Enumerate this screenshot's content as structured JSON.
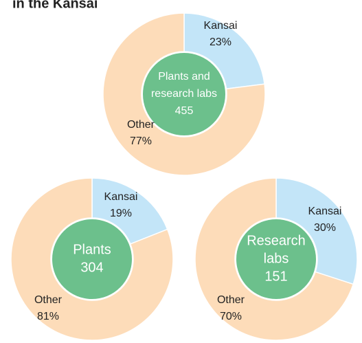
{
  "header": {
    "title": "in the Kansai"
  },
  "chart_data": [
    {
      "type": "donut",
      "center_label": [
        "Plants and",
        "research labs"
      ],
      "center_value": "455",
      "categories": [
        "Kansai",
        "Other"
      ],
      "values": [
        23,
        77
      ],
      "value_labels": [
        "23%",
        "77%"
      ],
      "colors": [
        "#c3e5f8",
        "#fddcb9"
      ],
      "center_color": "#6cc08c"
    },
    {
      "type": "donut",
      "center_label": [
        "Plants"
      ],
      "center_value": "304",
      "categories": [
        "Kansai",
        "Other"
      ],
      "values": [
        19,
        81
      ],
      "value_labels": [
        "19%",
        "81%"
      ],
      "colors": [
        "#c3e5f8",
        "#fddcb9"
      ],
      "center_color": "#6cc08c"
    },
    {
      "type": "donut",
      "center_label": [
        "Research",
        "labs"
      ],
      "center_value": "151",
      "categories": [
        "Kansai",
        "Other"
      ],
      "values": [
        30,
        70
      ],
      "value_labels": [
        "30%",
        "70%"
      ],
      "colors": [
        "#c3e5f8",
        "#fddcb9"
      ],
      "center_color": "#6cc08c"
    }
  ]
}
